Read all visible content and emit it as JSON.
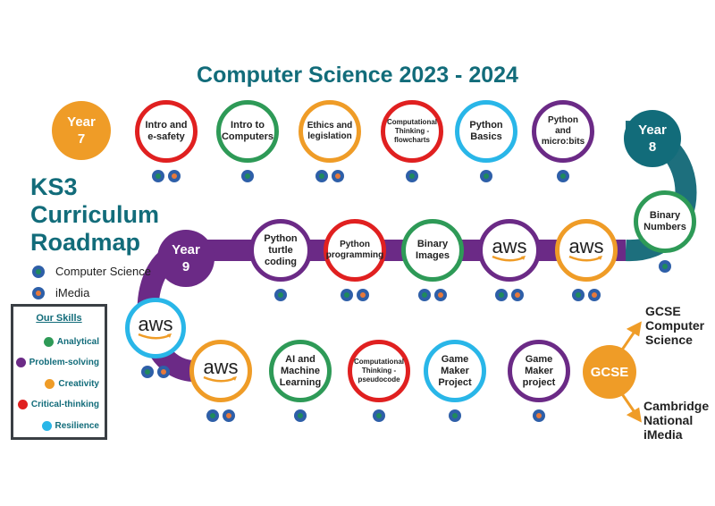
{
  "title": "Computer Science 2023 - 2024",
  "heading": {
    "line1": "KS3",
    "line2": "Curriculum",
    "line3": "Roadmap"
  },
  "legend": {
    "cs": "Computer Science",
    "imedia": "iMedia"
  },
  "skills_box": {
    "title": "Our Skills",
    "items": [
      {
        "label": "Analytical",
        "color": "#2e9a57"
      },
      {
        "label": "Problem-solving",
        "color": "#6b2a86"
      },
      {
        "label": "Creativity",
        "color": "#ef9c27"
      },
      {
        "label": "Critical-thinking",
        "color": "#e02020"
      },
      {
        "label": "Resilience",
        "color": "#29b6e8"
      }
    ]
  },
  "years": {
    "y7": [
      "Year",
      "7"
    ],
    "y8": [
      "Year",
      "8"
    ],
    "y9": [
      "Year",
      "9"
    ],
    "gcse": "GCSE"
  },
  "row1": [
    {
      "label": [
        "Intro and",
        "e-safety"
      ],
      "color": "#e02020",
      "badges": [
        "cs",
        "im"
      ]
    },
    {
      "label": [
        "Intro to",
        "Computers"
      ],
      "color": "#2e9a57",
      "badges": [
        "cs"
      ]
    },
    {
      "label": [
        "Ethics and",
        "legislation"
      ],
      "color": "#ef9c27",
      "badges": [
        "cs",
        "im"
      ]
    },
    {
      "label": [
        "Computational",
        "Thinking -",
        "flowcharts"
      ],
      "color": "#e02020",
      "badges": [
        "cs"
      ]
    },
    {
      "label": [
        "Python",
        "Basics"
      ],
      "color": "#29b6e8",
      "badges": [
        "cs"
      ]
    },
    {
      "label": [
        "Python",
        "and",
        "micro:bits"
      ],
      "color": "#6b2a86",
      "badges": [
        "cs"
      ]
    }
  ],
  "binary_numbers": {
    "label": [
      "Binary",
      "Numbers"
    ],
    "color": "#2e9a57",
    "badges": [
      "cs"
    ]
  },
  "row2": [
    {
      "label": [
        "Python",
        "turtle",
        "coding"
      ],
      "color": "#6b2a86",
      "badges": [
        "cs"
      ]
    },
    {
      "label": [
        "Python",
        "programming"
      ],
      "color": "#e02020",
      "badges": [
        "cs",
        "im"
      ]
    },
    {
      "label": [
        "Binary",
        "Images"
      ],
      "color": "#2e9a57",
      "badges": [
        "cs",
        "im"
      ]
    },
    {
      "aws": "aws",
      "color": "#6b2a86",
      "badges": [
        "cs",
        "im"
      ]
    },
    {
      "aws": "aws",
      "color": "#ef9c27",
      "badges": [
        "cs",
        "im"
      ]
    }
  ],
  "aws_left": {
    "aws": "aws",
    "color": "#29b6e8",
    "badges": [
      "cs",
      "im"
    ]
  },
  "row3": [
    {
      "aws": "aws",
      "color": "#ef9c27",
      "badges": [
        "cs",
        "im"
      ]
    },
    {
      "label": [
        "AI and",
        "Machine",
        "Learning"
      ],
      "color": "#2e9a57",
      "badges": [
        "cs"
      ]
    },
    {
      "label": [
        "Computational",
        "Thinking -",
        "pseudocode"
      ],
      "color": "#e02020",
      "badges": [
        "cs"
      ]
    },
    {
      "label": [
        "Game",
        "Maker",
        "Project"
      ],
      "color": "#29b6e8",
      "badges": [
        "cs"
      ]
    },
    {
      "label": [
        "Game",
        "Maker",
        "project"
      ],
      "color": "#6b2a86",
      "badges": [
        "im"
      ]
    }
  ],
  "outcomes": {
    "top": [
      "GCSE",
      "Computer",
      "Science"
    ],
    "bottom": [
      "Cambridge",
      "National",
      "iMedia"
    ]
  },
  "colors": {
    "teal": "#126c7a",
    "orange": "#ef9c27",
    "purple": "#6b2a86",
    "blue_dot": "#2e5fa8",
    "cs_inner": "#1f8a5c",
    "imedia_inner": "#e6793b"
  }
}
